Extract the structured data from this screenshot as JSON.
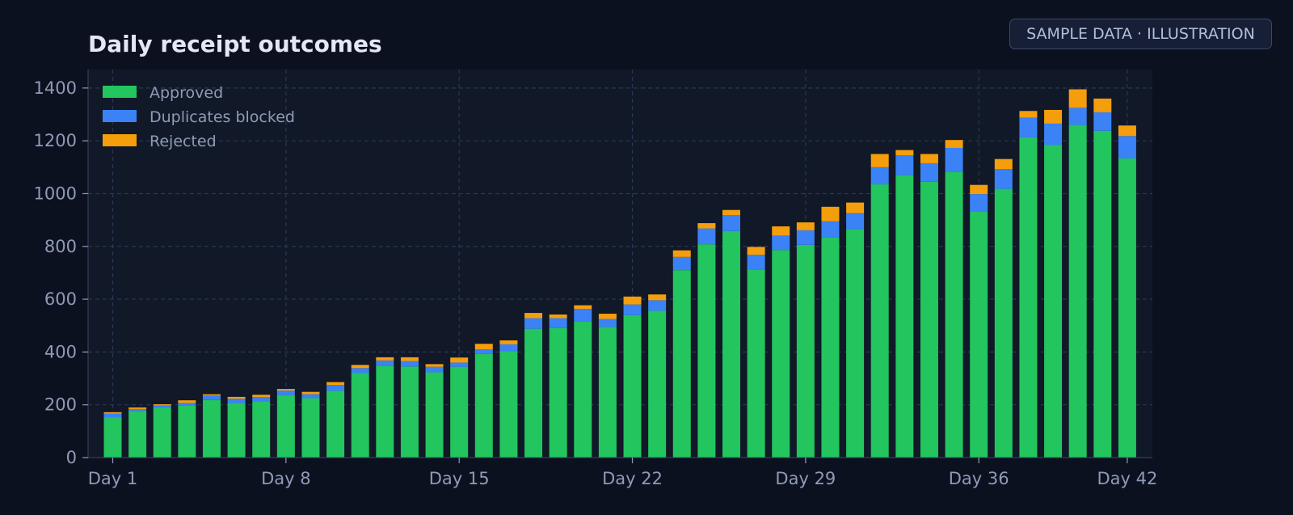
{
  "badge": "SAMPLE DATA · ILLUSTRATION",
  "colors": {
    "background": "#0c1120",
    "plot_background": "#111827",
    "grid": "#2a3754",
    "approved": "#22c55e",
    "duplicates": "#3b82f6",
    "rejected": "#f59e0b"
  },
  "chart_data": {
    "type": "bar",
    "stacked": true,
    "title": "Daily receipt outcomes",
    "xlabel": "",
    "ylabel": "",
    "ylim": [
      0,
      1470
    ],
    "yticks": [
      0,
      200,
      400,
      600,
      800,
      1000,
      1200,
      1400
    ],
    "xtick_labels": [
      "Day 1",
      "Day 8",
      "Day 15",
      "Day 22",
      "Day 29",
      "Day 36",
      "Day 42"
    ],
    "xtick_days": [
      1,
      8,
      15,
      22,
      29,
      36,
      42
    ],
    "grid": true,
    "legend_position": "top-left",
    "categories": [
      "Day 1",
      "Day 2",
      "Day 3",
      "Day 4",
      "Day 5",
      "Day 6",
      "Day 7",
      "Day 8",
      "Day 9",
      "Day 10",
      "Day 11",
      "Day 12",
      "Day 13",
      "Day 14",
      "Day 15",
      "Day 16",
      "Day 17",
      "Day 18",
      "Day 19",
      "Day 20",
      "Day 21",
      "Day 22",
      "Day 23",
      "Day 24",
      "Day 25",
      "Day 26",
      "Day 27",
      "Day 28",
      "Day 29",
      "Day 30",
      "Day 31",
      "Day 32",
      "Day 33",
      "Day 34",
      "Day 35",
      "Day 36",
      "Day 37",
      "Day 38",
      "Day 39",
      "Day 40",
      "Day 41",
      "Day 42"
    ],
    "series": [
      {
        "name": "Approved",
        "color": "#22c55e",
        "values": [
          153,
          177,
          190,
          198,
          218,
          207,
          214,
          237,
          225,
          253,
          320,
          348,
          345,
          323,
          344,
          393,
          404,
          488,
          491,
          517,
          495,
          540,
          556,
          710,
          808,
          858,
          713,
          786,
          806,
          835,
          866,
          1035,
          1070,
          1045,
          1083,
          933,
          1018,
          1213,
          1185,
          1260,
          1238,
          1133
        ]
      },
      {
        "name": "Duplicates blocked",
        "color": "#3b82f6",
        "values": [
          13,
          7,
          7,
          9,
          17,
          16,
          15,
          17,
          15,
          22,
          19,
          20,
          21,
          21,
          16,
          17,
          25,
          40,
          37,
          46,
          30,
          40,
          40,
          50,
          60,
          60,
          55,
          55,
          55,
          60,
          60,
          65,
          75,
          70,
          90,
          65,
          75,
          75,
          80,
          65,
          70,
          85
        ]
      },
      {
        "name": "Rejected",
        "color": "#f59e0b",
        "values": [
          6,
          6,
          5,
          10,
          5,
          7,
          9,
          6,
          9,
          11,
          12,
          12,
          14,
          10,
          19,
          21,
          15,
          20,
          14,
          14,
          20,
          30,
          22,
          25,
          20,
          20,
          30,
          35,
          30,
          55,
          40,
          50,
          20,
          35,
          30,
          35,
          38,
          25,
          52,
          70,
          52,
          40
        ]
      }
    ]
  }
}
